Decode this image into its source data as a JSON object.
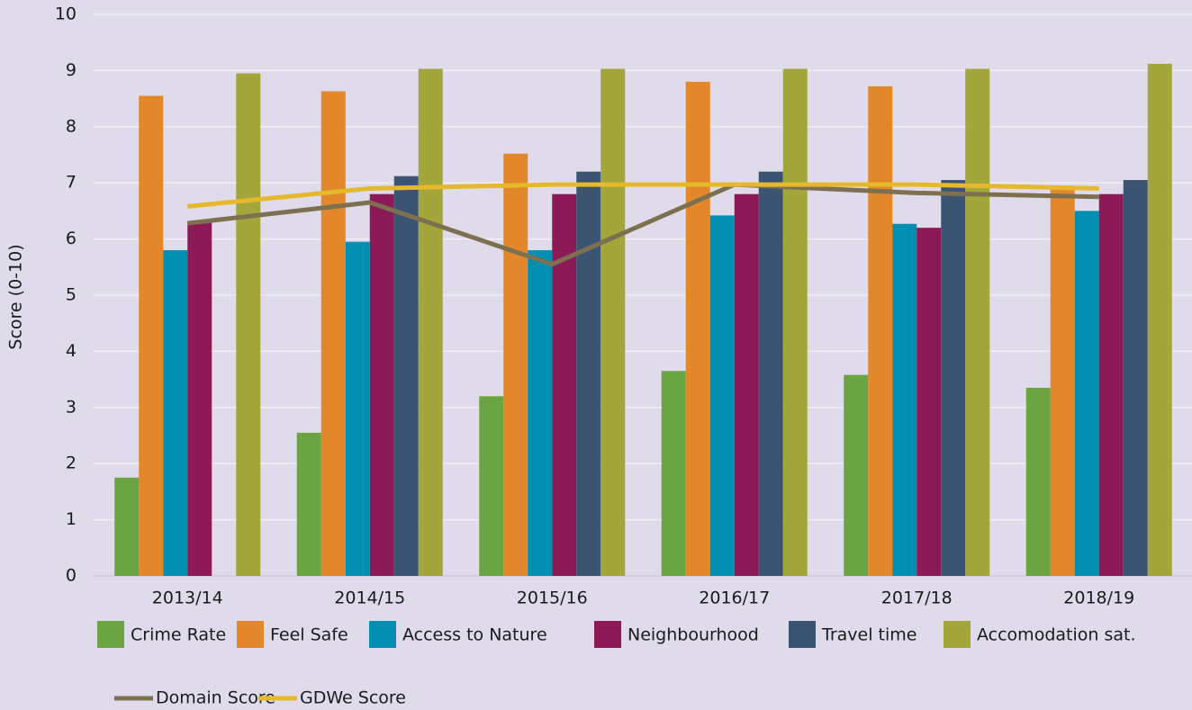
{
  "chart_data": {
    "type": "bar",
    "y_label": "Score (0-10)",
    "categories": [
      "2013/14",
      "2014/15",
      "2015/16",
      "2016/17",
      "2017/18",
      "2018/19"
    ],
    "series": [
      {
        "name": "Crime Rate",
        "color": "#6aa443",
        "values": [
          1.75,
          2.55,
          3.2,
          3.65,
          3.58,
          3.35
        ]
      },
      {
        "name": "Feel Safe",
        "color": "#e2872a",
        "values": [
          8.55,
          8.63,
          7.52,
          8.8,
          8.72,
          6.95
        ]
      },
      {
        "name": "Access to Nature",
        "color": "#008fb0",
        "values": [
          5.8,
          5.95,
          5.8,
          6.42,
          6.27,
          6.5
        ]
      },
      {
        "name": "Neighbourhood",
        "color": "#8b1a56",
        "values": [
          6.3,
          6.8,
          6.8,
          6.8,
          6.2,
          6.8
        ]
      },
      {
        "name": "Travel time",
        "color": "#3a5471",
        "values": [
          null,
          7.12,
          7.2,
          7.2,
          7.05,
          7.05
        ]
      },
      {
        "name": "Accomodation sat.",
        "color": "#a3a63a",
        "values": [
          8.95,
          9.03,
          9.03,
          9.03,
          9.03,
          9.12
        ]
      },
      {
        "name": "Domain Score",
        "color": "#7d7050",
        "type": "line",
        "values": [
          6.28,
          6.65,
          5.55,
          6.97,
          6.82,
          6.75
        ]
      },
      {
        "name": "GDWe Score",
        "color": "#e5b92e",
        "type": "line",
        "values": [
          6.58,
          6.9,
          6.97,
          6.97,
          6.97,
          6.9
        ]
      }
    ],
    "ylim": [
      0,
      10
    ],
    "yticks": [
      0,
      1,
      2,
      3,
      4,
      5,
      6,
      7,
      8,
      9,
      10
    ],
    "grid": true
  }
}
